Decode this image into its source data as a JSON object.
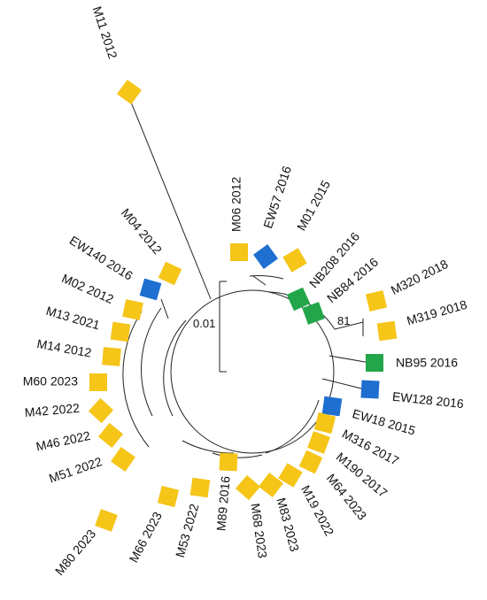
{
  "colors": {
    "yellow": "#F5C518",
    "blue": "#1E6FD0",
    "green": "#23A64A"
  },
  "scale_bar_label": "0.01",
  "bootstrap_label": "81",
  "taxa": [
    {
      "label": "M11 2012",
      "color": "yellow"
    },
    {
      "label": "M06 2012",
      "color": "yellow"
    },
    {
      "label": "EW57 2016",
      "color": "blue"
    },
    {
      "label": "M01 2015",
      "color": "yellow"
    },
    {
      "label": "NB208 2016",
      "color": "green"
    },
    {
      "label": "NB84 2016",
      "color": "green"
    },
    {
      "label": "M320 2018",
      "color": "yellow"
    },
    {
      "label": "M319 2018",
      "color": "yellow"
    },
    {
      "label": "NB95 2016",
      "color": "green"
    },
    {
      "label": "EW128 2016",
      "color": "blue"
    },
    {
      "label": "EW18 2015",
      "color": "blue"
    },
    {
      "label": "M316 2017",
      "color": "yellow"
    },
    {
      "label": "M190 2017",
      "color": "yellow"
    },
    {
      "label": "M64 2023",
      "color": "yellow"
    },
    {
      "label": "M19 2022",
      "color": "yellow"
    },
    {
      "label": "M83 2023",
      "color": "yellow"
    },
    {
      "label": "M68 2023",
      "color": "yellow"
    },
    {
      "label": "M89 2016",
      "color": "yellow"
    },
    {
      "label": "M53 2022",
      "color": "yellow"
    },
    {
      "label": "M66 2023",
      "color": "yellow"
    },
    {
      "label": "M80 2023",
      "color": "yellow"
    },
    {
      "label": "M51 2022",
      "color": "yellow"
    },
    {
      "label": "M46 2022",
      "color": "yellow"
    },
    {
      "label": "M42 2022",
      "color": "yellow"
    },
    {
      "label": "M60 2023",
      "color": "yellow"
    },
    {
      "label": "M14 2012",
      "color": "yellow"
    },
    {
      "label": "M13 2021",
      "color": "yellow"
    },
    {
      "label": "M02 2012",
      "color": "yellow"
    },
    {
      "label": "EW140 2016",
      "color": "blue"
    },
    {
      "label": "M04 2012",
      "color": "yellow"
    }
  ]
}
